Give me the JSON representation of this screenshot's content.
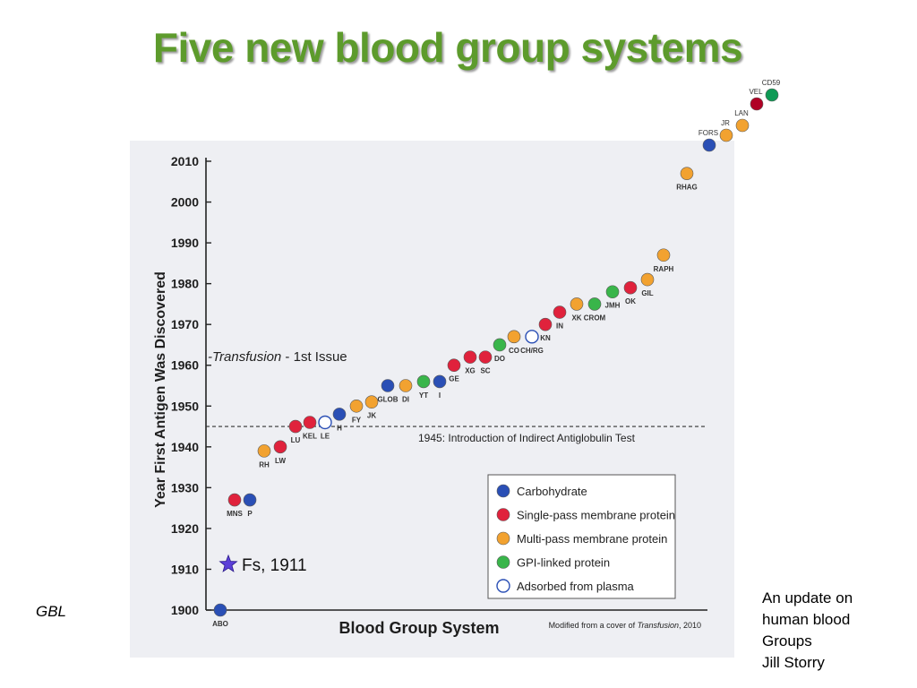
{
  "slide": {
    "title": "Five new blood group systems",
    "left_label": "GBL",
    "credit_lines": [
      "An update on",
      "human blood",
      "Groups",
      "Jill Storry"
    ]
  },
  "chart_data": {
    "type": "scatter",
    "title": "",
    "xlabel": "Blood Group System",
    "ylabel": "Year First Antigen Was Discovered",
    "ylim": [
      1900,
      2010
    ],
    "yticks": [
      1900,
      1910,
      1920,
      1930,
      1940,
      1950,
      1960,
      1970,
      1980,
      1990,
      2000,
      2010
    ],
    "grid": false,
    "legend_position": "bottom-right",
    "legend": [
      {
        "key": "carb",
        "label": "Carbohydrate",
        "color": "#2a4fb5"
      },
      {
        "key": "single",
        "label": "Single-pass membrane protein",
        "color": "#e0223c"
      },
      {
        "key": "multi",
        "label": "Multi-pass membrane protein",
        "color": "#f2a230"
      },
      {
        "key": "gpi",
        "label": "GPI-linked protein",
        "color": "#39b54a"
      },
      {
        "key": "plasma",
        "label": "Adsorbed from plasma",
        "color": "#ffffff"
      }
    ],
    "colors": {
      "carb": "#2a4fb5",
      "single": "#e0223c",
      "multi": "#f2a230",
      "gpi": "#39b54a",
      "plasma": "#ffffff",
      "vel": "#b00025",
      "cd59": "#0f9a55",
      "star": "#5b3fd8"
    },
    "points": [
      {
        "label": "ABO",
        "year": 1900,
        "type": "carb"
      },
      {
        "label": "MNS",
        "year": 1927,
        "type": "single"
      },
      {
        "label": "P",
        "year": 1927,
        "type": "carb"
      },
      {
        "label": "RH",
        "year": 1939,
        "type": "multi"
      },
      {
        "label": "LW",
        "year": 1940,
        "type": "single"
      },
      {
        "label": "LU",
        "year": 1945,
        "type": "single"
      },
      {
        "label": "KEL",
        "year": 1946,
        "type": "single"
      },
      {
        "label": "LE",
        "year": 1946,
        "type": "plasma"
      },
      {
        "label": "H",
        "year": 1948,
        "type": "carb"
      },
      {
        "label": "FY",
        "year": 1950,
        "type": "multi"
      },
      {
        "label": "JK",
        "year": 1951,
        "type": "multi"
      },
      {
        "label": "GLOB",
        "year": 1955,
        "type": "carb"
      },
      {
        "label": "DI",
        "year": 1955,
        "type": "multi"
      },
      {
        "label": "YT",
        "year": 1956,
        "type": "gpi"
      },
      {
        "label": "I",
        "year": 1956,
        "type": "carb"
      },
      {
        "label": "GE",
        "year": 1960,
        "type": "single"
      },
      {
        "label": "XG",
        "year": 1962,
        "type": "single"
      },
      {
        "label": "SC",
        "year": 1962,
        "type": "single"
      },
      {
        "label": "DO",
        "year": 1965,
        "type": "gpi"
      },
      {
        "label": "CO",
        "year": 1967,
        "type": "multi"
      },
      {
        "label": "CH/RG",
        "year": 1967,
        "type": "plasma"
      },
      {
        "label": "KN",
        "year": 1970,
        "type": "single"
      },
      {
        "label": "IN",
        "year": 1973,
        "type": "single"
      },
      {
        "label": "XK",
        "year": 1975,
        "type": "multi"
      },
      {
        "label": "CROM",
        "year": 1975,
        "type": "gpi"
      },
      {
        "label": "JMH",
        "year": 1978,
        "type": "gpi"
      },
      {
        "label": "OK",
        "year": 1979,
        "type": "single"
      },
      {
        "label": "GIL",
        "year": 1981,
        "type": "multi"
      },
      {
        "label": "RAPH",
        "year": 1987,
        "type": "multi"
      },
      {
        "label": "RHAG",
        "year": 2007,
        "type": "multi"
      }
    ],
    "new_systems": [
      {
        "label": "FORS",
        "type": "carb"
      },
      {
        "label": "JR",
        "type": "multi"
      },
      {
        "label": "LAN",
        "type": "multi"
      },
      {
        "label": "VEL",
        "type": "vel"
      },
      {
        "label": "CD59",
        "type": "cd59"
      }
    ],
    "annotations": {
      "transfusion": "Transfusion",
      "transfusion_suffix": " - 1st Issue",
      "iat_year": 1945,
      "iat_text": "1945: Introduction of Indirect Antiglobulin Test",
      "fs_label": "Fs, 1911",
      "fs_year": 1911,
      "source_prefix": "Modified from a cover of ",
      "source_journal": "Transfusion",
      "source_suffix": ", 2010"
    }
  }
}
